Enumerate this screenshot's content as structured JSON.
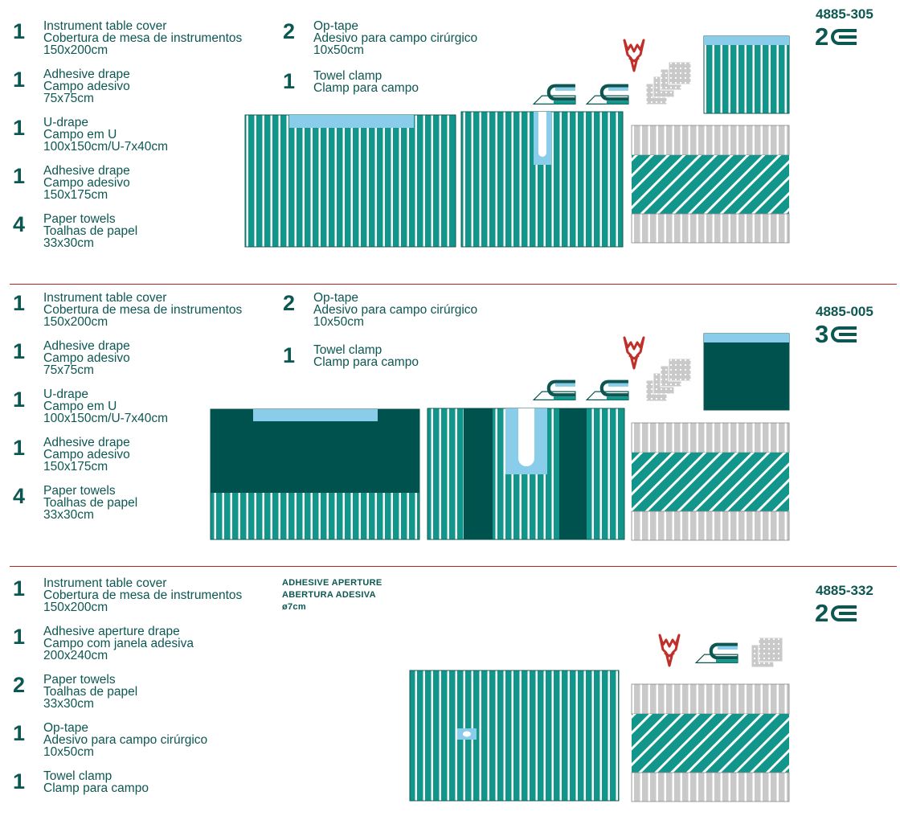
{
  "colors": {
    "teal": "#12958a",
    "dark": "#00524e",
    "light_blue": "#89cdea",
    "grey": "#c9c9c9",
    "red": "#b5251f",
    "text": "#0d5753"
  },
  "sections": [
    {
      "code": "4885-305",
      "layers": "2",
      "items_left": [
        {
          "qty": "1",
          "lines": [
            "Instrument table cover",
            "Cobertura de mesa de instrumentos",
            "150x200cm"
          ]
        },
        {
          "qty": "1",
          "lines": [
            "Adhesive drape",
            "Campo adesivo",
            "75x75cm"
          ]
        },
        {
          "qty": "1",
          "lines": [
            "U-drape",
            "Campo em U",
            "100x150cm/U-7x40cm"
          ]
        },
        {
          "qty": "1",
          "lines": [
            "Adhesive drape",
            "Campo adesivo",
            "150x175cm"
          ]
        },
        {
          "qty": "4",
          "lines": [
            "Paper towels",
            "Toalhas de papel",
            "33x30cm"
          ]
        }
      ],
      "items_right": [
        {
          "qty": "2",
          "lines": [
            "Op-tape",
            "Adesivo para campo cirúrgico",
            "10x50cm"
          ]
        },
        {
          "qty": "1",
          "lines": [
            "Towel clamp",
            "Clamp para campo"
          ]
        }
      ]
    },
    {
      "code": "4885-005",
      "layers": "3",
      "items_left": [
        {
          "qty": "1",
          "lines": [
            "Instrument table cover",
            "Cobertura de mesa de instrumentos",
            "150x200cm"
          ]
        },
        {
          "qty": "1",
          "lines": [
            "Adhesive drape",
            "Campo adesivo",
            "75x75cm"
          ]
        },
        {
          "qty": "1",
          "lines": [
            "U-drape",
            "Campo em U",
            "100x150cm/U-7x40cm"
          ]
        },
        {
          "qty": "1",
          "lines": [
            "Adhesive drape",
            "Campo adesivo",
            "150x175cm"
          ]
        },
        {
          "qty": "4",
          "lines": [
            "Paper towels",
            "Toalhas de papel",
            "33x30cm"
          ]
        }
      ],
      "items_right": [
        {
          "qty": "2",
          "lines": [
            "Op-tape",
            "Adesivo para campo cirúrgico",
            "10x50cm"
          ]
        },
        {
          "qty": "1",
          "lines": [
            "Towel clamp",
            "Clamp para campo"
          ]
        }
      ]
    },
    {
      "code": "4885-332",
      "layers": "2",
      "items_left": [
        {
          "qty": "1",
          "lines": [
            "Instrument table cover",
            "Cobertura de mesa de instrumentos",
            "150x200cm"
          ]
        },
        {
          "qty": "1",
          "lines": [
            "Adhesive aperture drape",
            "Campo com janela adesiva",
            "200x240cm"
          ]
        },
        {
          "qty": "2",
          "lines": [
            "Paper towels",
            "Toalhas de papel",
            "33x30cm"
          ]
        },
        {
          "qty": "1",
          "lines": [
            "Op-tape",
            "Adesivo para campo cirúrgico",
            "10x50cm"
          ]
        },
        {
          "qty": "1",
          "lines": [
            "Towel clamp",
            "Clamp para campo"
          ]
        }
      ],
      "aperture_note": [
        "ADHESIVE APERTURE",
        "ABERTURA ADESIVA",
        "ø7cm"
      ]
    }
  ]
}
